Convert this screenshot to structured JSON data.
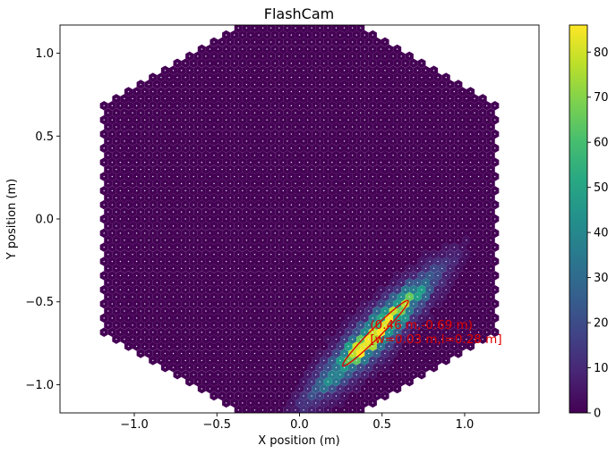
{
  "chart_data": {
    "type": "heatmap",
    "title": "FlashCam",
    "xlabel": "X position (m)",
    "ylabel": "Y position (m)",
    "xlim": [
      -1.45,
      1.45
    ],
    "ylim": [
      -1.17,
      1.17
    ],
    "xticks": [
      -1.0,
      -0.5,
      0.0,
      0.5,
      1.0
    ],
    "yticks": [
      -1.0,
      -0.5,
      0.0,
      0.5,
      1.0
    ],
    "xtick_labels": [
      "−1.0",
      "−0.5",
      "0.0",
      "0.5",
      "1.0"
    ],
    "ytick_labels": [
      "−1.0",
      "−0.5",
      "0.0",
      "0.5",
      "1.0"
    ],
    "grid": false,
    "colormap": "viridis",
    "colorbar": {
      "min": 0,
      "max": 86,
      "ticks": [
        0,
        10,
        20,
        30,
        40,
        50,
        60,
        70,
        80
      ],
      "tick_labels": [
        "0",
        "10",
        "20",
        "30",
        "40",
        "50",
        "60",
        "70",
        "80"
      ]
    },
    "camera": {
      "pixel_shape": "hexagon",
      "pixel_spacing_m": 0.0493,
      "outer_boundary_shape": "hexagon",
      "half_width_m": 1.2,
      "background_intensity": 0
    },
    "hillas": {
      "centroid": [
        0.46,
        -0.69
      ],
      "width": 0.03,
      "length": 0.28,
      "angle_deg": 45,
      "peak_intensity": 86
    },
    "annotation_lines": [
      "(0.46 m,-0.69 m)",
      "[w=0.03 m,l=0.28 m]"
    ],
    "ellipse_color": "#e00000",
    "annotation_color": "#e00000"
  }
}
